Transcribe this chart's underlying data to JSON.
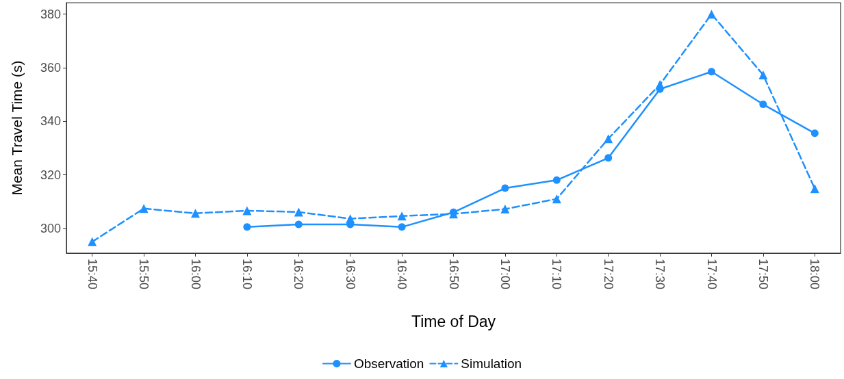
{
  "chart_data": {
    "type": "line",
    "xlabel": "Time of Day",
    "ylabel": "Mean Travel Time (s)",
    "categories": [
      "15:40",
      "15:50",
      "16:00",
      "16:10",
      "16:20",
      "16:30",
      "16:40",
      "16:50",
      "17:00",
      "17:10",
      "17:20",
      "17:30",
      "17:40",
      "17:50",
      "18:00"
    ],
    "series": [
      {
        "name": "Observation",
        "color": "#1e90ff",
        "marker": "circle",
        "line_style": "solid",
        "values": [
          null,
          null,
          null,
          300.5,
          301.5,
          301.5,
          300.5,
          306,
          315,
          318,
          326.3,
          352,
          358.5,
          346.3,
          335.5
        ]
      },
      {
        "name": "Simulation",
        "color": "#1e90ff",
        "marker": "triangle",
        "line_style": "dashed",
        "values": [
          295,
          307.4,
          305.6,
          306.6,
          306.1,
          303.6,
          304.6,
          305.4,
          307.2,
          311,
          333.5,
          353.7,
          380,
          357.3,
          314.8
        ]
      }
    ],
    "ylim": [
      290.75,
      384.25
    ],
    "yticks": [
      300,
      320,
      340,
      360,
      380
    ],
    "grid": false,
    "legend": "bottom"
  }
}
